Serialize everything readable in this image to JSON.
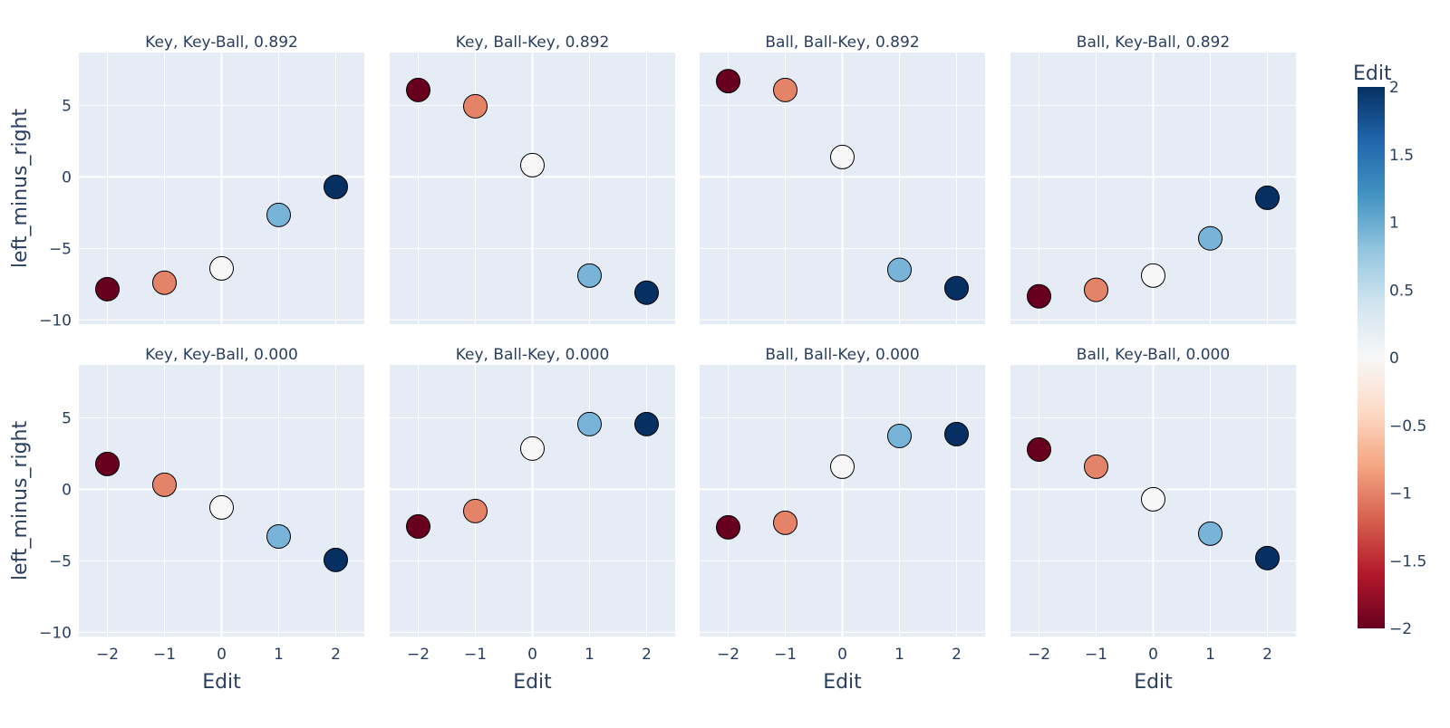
{
  "chart_data": {
    "type": "scatter",
    "x": [
      -2,
      -1,
      0,
      1,
      2
    ],
    "xlabel": "Edit",
    "ylabel": "left_minus_right",
    "xlim": [
      -2.5,
      2.5
    ],
    "ylim": [
      -10.3,
      8.7
    ],
    "xticks": [
      "−2",
      "−1",
      "0",
      "1",
      "2"
    ],
    "xtick_values": [
      -2,
      -1,
      0,
      1,
      2
    ],
    "yticks": [
      "5",
      "0",
      "−5",
      "−10"
    ],
    "ytick_values": [
      5,
      0,
      -5,
      -10
    ],
    "grid": true,
    "color_by": "Edit",
    "colorbar": {
      "title": "Edit",
      "range": [
        -2,
        2
      ],
      "ticks": [
        "2",
        "1.5",
        "1",
        "0.5",
        "0",
        "−0.5",
        "−1",
        "−1.5",
        "−2"
      ],
      "tick_values": [
        2,
        1.5,
        1,
        0.5,
        0,
        -0.5,
        -1,
        -1.5,
        -2
      ],
      "colorscale": [
        "#67001f",
        "#b2182b",
        "#d6604d",
        "#f4a582",
        "#fddbc7",
        "#f7f7f7",
        "#d1e5f0",
        "#92c5de",
        "#4393c3",
        "#2166ac",
        "#053061"
      ]
    },
    "point_colors": [
      "#67001f",
      "#e58368",
      "#f7f7f7",
      "#78b4d8",
      "#053061"
    ],
    "panels": [
      {
        "title": "Key, Key-Ball, 0.892",
        "y": [
          -7.85,
          -7.4,
          -6.4,
          -2.66,
          -0.7
        ]
      },
      {
        "title": "Key, Ball-Key, 0.892",
        "y": [
          6.08,
          4.94,
          0.82,
          -6.9,
          -8.1
        ]
      },
      {
        "title": "Ball, Ball-Key, 0.892",
        "y": [
          6.7,
          6.08,
          1.39,
          -6.5,
          -7.78
        ]
      },
      {
        "title": "Ball, Key-Ball, 0.892",
        "y": [
          -8.35,
          -7.9,
          -6.9,
          -4.3,
          -1.46
        ]
      },
      {
        "title": "Key, Key-Ball, 0.000",
        "y": [
          1.77,
          0.32,
          -1.27,
          -3.3,
          -4.94
        ]
      },
      {
        "title": "Key, Ball-Key, 0.000",
        "y": [
          -2.6,
          -1.52,
          2.85,
          4.56,
          4.56
        ]
      },
      {
        "title": "Ball, Ball-Key, 0.000",
        "y": [
          -2.66,
          -2.34,
          1.58,
          3.73,
          3.86
        ]
      },
      {
        "title": "Ball, Key-Ball, 0.000",
        "y": [
          2.78,
          1.58,
          -0.7,
          -3.1,
          -4.81
        ]
      }
    ]
  }
}
